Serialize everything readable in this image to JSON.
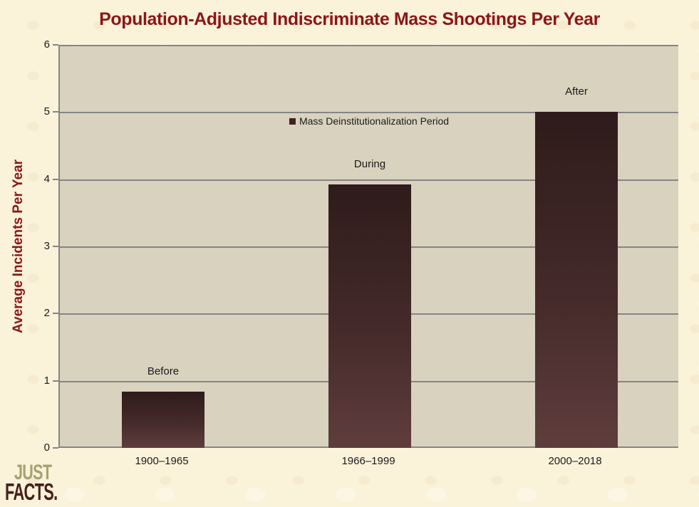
{
  "colors": {
    "background": "#FBF2DA",
    "plot_background": "#D9D2BE",
    "gridline": "#858585",
    "bar_gradient_top": "#2F1B1B",
    "bar_gradient_bottom": "#5F3D3D",
    "title_text": "#8C1616",
    "axis_text": "#1B1B1B",
    "legend_marker": "#402222",
    "logo_just": "#A5A36E",
    "logo_facts": "#44211D"
  },
  "logo": {
    "line1": "JUST",
    "line2": "FACTS."
  },
  "chart_data": {
    "type": "bar",
    "title": "Population-Adjusted Indiscriminate Mass Shootings Per Year",
    "ylabel": "Average Incidents Per Year",
    "xlabel": "",
    "categories": [
      "1900–1965",
      "1966–1999",
      "2000–2018"
    ],
    "bar_labels": [
      "Before",
      "During",
      "After"
    ],
    "values": [
      0.84,
      3.92,
      5.0
    ],
    "ylim": [
      0,
      6
    ],
    "yticks": [
      0,
      1,
      2,
      3,
      4,
      5,
      6
    ],
    "grid": true,
    "legend_entries": [
      "Mass Deinstitutionalization Period"
    ],
    "legend_position": "top-center"
  }
}
